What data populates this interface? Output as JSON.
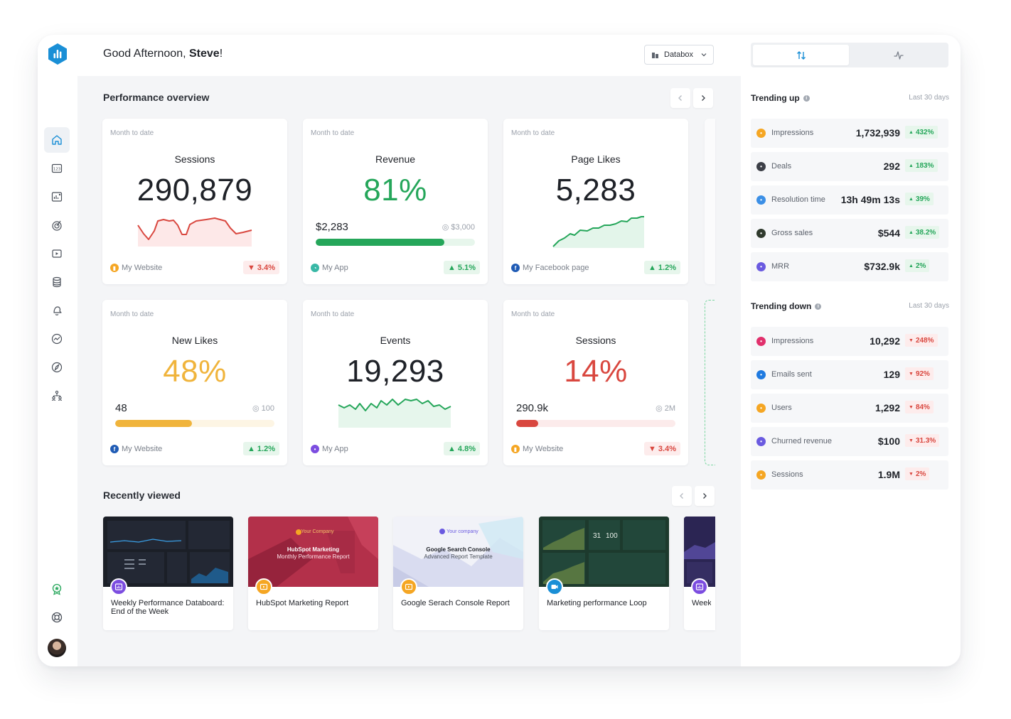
{
  "header": {
    "greeting_prefix": "Good Afternoon, ",
    "user_name": "Steve",
    "greeting_suffix": "!",
    "account_selector": "Databox"
  },
  "performance": {
    "title": "Performance overview",
    "cards": [
      {
        "period": "Month to date",
        "title": "Sessions",
        "value": "290,879",
        "value_color": "#1f2228",
        "source": "My Website",
        "change": "3.4%",
        "direction": "down"
      },
      {
        "period": "Month to date",
        "title": "Revenue",
        "value": "81%",
        "value_color": "#25a65a",
        "current": "$2,283",
        "goal": "$3,000",
        "progress": 0.81,
        "source": "My App",
        "change": "5.1%",
        "direction": "up"
      },
      {
        "period": "Month to date",
        "title": "Page Likes",
        "value": "5,283",
        "value_color": "#1f2228",
        "source": "My Facebook page",
        "change": "1.2%",
        "direction": "up"
      },
      {
        "period": "Month to date",
        "title": "New Likes",
        "value": "48%",
        "value_color": "#f0b43c",
        "current": "48",
        "goal": "100",
        "progress": 0.48,
        "source": "My Website",
        "change": "1.2%",
        "direction": "up"
      },
      {
        "period": "Month to date",
        "title": "Events",
        "value": "19,293",
        "value_color": "#1f2228",
        "source": "My App",
        "change": "4.8%",
        "direction": "up"
      },
      {
        "period": "Month to date",
        "title": "Sessions",
        "value": "14%",
        "value_color": "#d9473f",
        "current": "290.9k",
        "goal": "2M",
        "progress": 0.14,
        "source": "My Website",
        "change": "3.4%",
        "direction": "down"
      }
    ]
  },
  "recent": {
    "title": "Recently viewed",
    "items": [
      {
        "title": "Weekly Performance Databoard: End of the Week"
      },
      {
        "title": "HubSpot Marketing Report",
        "thumb_brand": "Your Company",
        "thumb_title": "HubSpot Marketing",
        "thumb_subtitle": "Monthly Performance Report"
      },
      {
        "title": "Google Serach Console Report",
        "thumb_brand": "Your company",
        "thumb_title": "Google Search Console",
        "thumb_subtitle": "Advanced Report Template"
      },
      {
        "title": "Marketing performance Loop",
        "thumb_values": [
          "31",
          "100"
        ]
      },
      {
        "title": "Weekly End of"
      }
    ]
  },
  "trending_up": {
    "title": "Trending up",
    "period": "Last 30 days",
    "items": [
      {
        "label": "Impressions",
        "value": "1,732,939",
        "change": "432%",
        "icon_color": "#f5a623"
      },
      {
        "label": "Deals",
        "value": "292",
        "change": "183%",
        "icon_color": "#3c3f47"
      },
      {
        "label": "Resolution time",
        "value": "13h 49m 13s",
        "change": "39%",
        "icon_color": "#3b8fe6"
      },
      {
        "label": "Gross sales",
        "value": "$544",
        "change": "38.2%",
        "icon_color": "#2f3a2d"
      },
      {
        "label": "MRR",
        "value": "$732.9k",
        "change": "2%",
        "icon_color": "#6a5ae0"
      }
    ]
  },
  "trending_down": {
    "title": "Trending down",
    "period": "Last 30 days",
    "items": [
      {
        "label": "Impressions",
        "value": "10,292",
        "change": "248%",
        "icon_color": "#e1306c"
      },
      {
        "label": "Emails sent",
        "value": "129",
        "change": "92%",
        "icon_color": "#1f7ae0"
      },
      {
        "label": "Users",
        "value": "1,292",
        "change": "84%",
        "icon_color": "#f5a623"
      },
      {
        "label": "Churned revenue",
        "value": "$100",
        "change": "31.3%",
        "icon_color": "#6a5ae0"
      },
      {
        "label": "Sessions",
        "value": "1.9M",
        "change": "2%",
        "icon_color": "#f5a623"
      }
    ]
  },
  "colors": {
    "accent": "#1a8fd6",
    "positive": "#25a65a",
    "negative": "#d9473f",
    "warning": "#f0b43c"
  }
}
